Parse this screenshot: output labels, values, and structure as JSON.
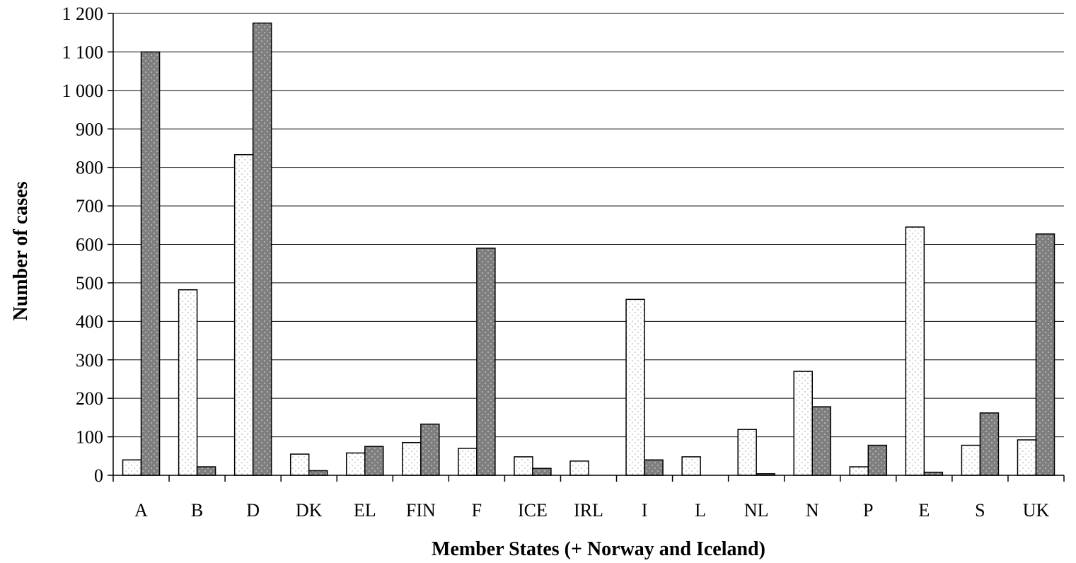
{
  "chart_data": {
    "type": "bar",
    "title": "",
    "xlabel": "Member States (+ Norway and Iceland)",
    "ylabel": "Number of cases",
    "ylim": [
      0,
      1200
    ],
    "yticks": [
      0,
      100,
      200,
      300,
      400,
      500,
      600,
      700,
      800,
      900,
      1000,
      1100,
      1200
    ],
    "ytick_labels": [
      "0",
      "100",
      "200",
      "300",
      "400",
      "500",
      "600",
      "700",
      "800",
      "900",
      "1 000",
      "1 100",
      "1 200"
    ],
    "grid": true,
    "legend": "none",
    "categories": [
      "A",
      "B",
      "D",
      "DK",
      "EL",
      "FIN",
      "F",
      "ICE",
      "IRL",
      "I",
      "L",
      "NL",
      "N",
      "P",
      "E",
      "S",
      "UK"
    ],
    "series": [
      {
        "color": "#ffffff",
        "pattern": "light-dotted",
        "values": [
          40,
          482,
          833,
          55,
          58,
          85,
          70,
          48,
          37,
          457,
          48,
          119,
          270,
          22,
          645,
          78,
          92
        ]
      },
      {
        "color": "#808080",
        "pattern": "dark-dotted",
        "values": [
          1100,
          22,
          1175,
          12,
          75,
          133,
          590,
          18,
          0,
          40,
          0,
          4,
          178,
          78,
          8,
          162,
          627
        ]
      }
    ]
  }
}
